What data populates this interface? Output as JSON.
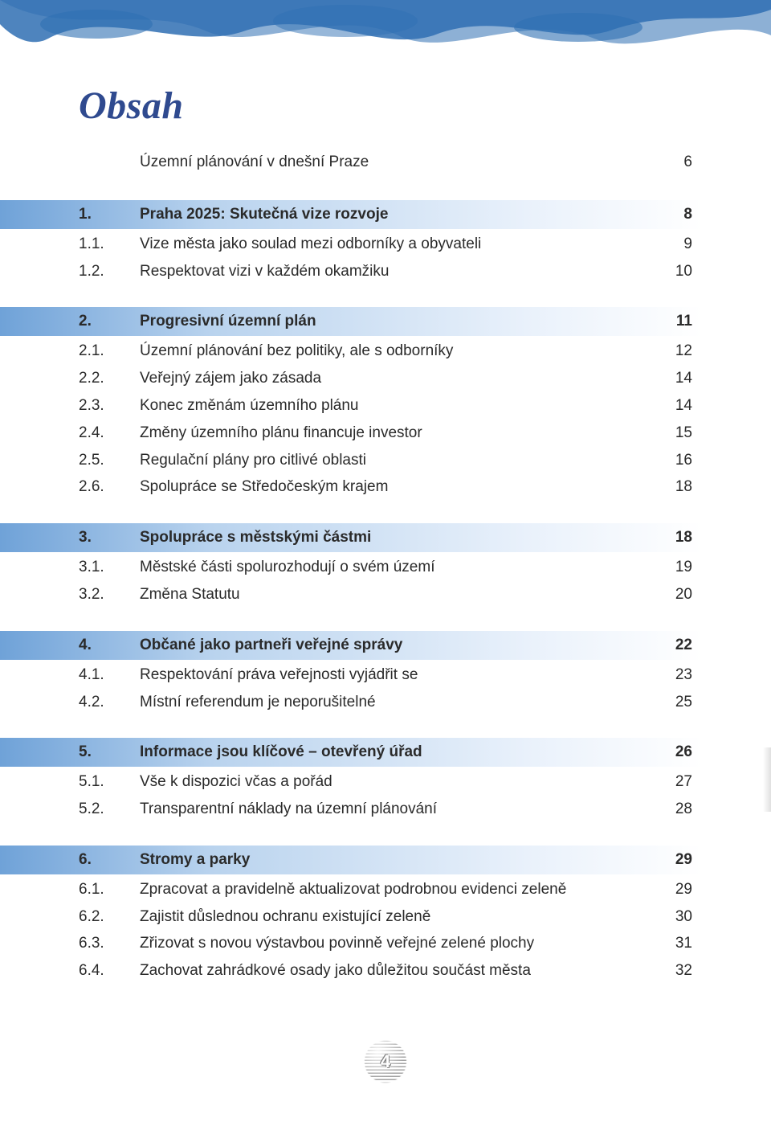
{
  "colors": {
    "title": "#2f4a8f",
    "text": "#2a2a2a",
    "brush": "#2f6fb3",
    "section_grad_from": "#6fa2d8",
    "section_grad_mid": "#b9d3ee",
    "section_grad_to": "#ffffff",
    "background": "#ffffff"
  },
  "typography": {
    "title_family": "Georgia serif italic",
    "title_size_pt": 36,
    "body_family": "Segoe UI / sans-serif",
    "body_size_pt": 14
  },
  "title": "Obsah",
  "intro": {
    "label": "Územní plánování v dnešní Praze",
    "page": "6"
  },
  "sections": [
    {
      "num": "1.",
      "label": "Praha 2025: Skutečná vize rozvoje",
      "page": "8",
      "items": [
        {
          "num": "1.1.",
          "label": "Vize města jako soulad mezi odborníky a obyvateli",
          "page": "9"
        },
        {
          "num": "1.2.",
          "label": "Respektovat vizi v každém okamžiku",
          "page": "10"
        }
      ]
    },
    {
      "num": "2.",
      "label": "Progresivní územní plán",
      "page": "11",
      "items": [
        {
          "num": "2.1.",
          "label": "Územní plánování bez politiky, ale s odborníky",
          "page": "12"
        },
        {
          "num": "2.2.",
          "label": "Veřejný zájem jako zásada",
          "page": "14"
        },
        {
          "num": "2.3.",
          "label": "Konec změnám územního plánu",
          "page": "14"
        },
        {
          "num": "2.4.",
          "label": "Změny územního plánu financuje investor",
          "page": "15"
        },
        {
          "num": "2.5.",
          "label": "Regulační plány pro citlivé oblasti",
          "page": "16"
        },
        {
          "num": "2.6.",
          "label": "Spolupráce se Středočeským krajem",
          "page": "18"
        }
      ]
    },
    {
      "num": "3.",
      "label": "Spolupráce s městskými částmi",
      "page": "18",
      "items": [
        {
          "num": "3.1.",
          "label": "Městské části spolurozhodují o svém území",
          "page": "19"
        },
        {
          "num": "3.2.",
          "label": "Změna Statutu",
          "page": "20"
        }
      ]
    },
    {
      "num": "4.",
      "label": "Občané jako partneři veřejné správy",
      "page": "22",
      "items": [
        {
          "num": "4.1.",
          "label": "Respektování práva veřejnosti vyjádřit se",
          "page": "23"
        },
        {
          "num": "4.2.",
          "label": "Místní referendum je neporušitelné",
          "page": "25"
        }
      ]
    },
    {
      "num": "5.",
      "label": "Informace jsou klíčové – otevřený úřad",
      "page": "26",
      "items": [
        {
          "num": "5.1.",
          "label": "Vše k dispozici včas a pořád",
          "page": "27"
        },
        {
          "num": "5.2.",
          "label": "Transparentní náklady na územní plánování",
          "page": "28"
        }
      ]
    },
    {
      "num": "6.",
      "label": "Stromy a parky",
      "page": "29",
      "items": [
        {
          "num": "6.1.",
          "label": "Zpracovat a pravidelně aktualizovat podrobnou evidenci zeleně",
          "page": "29"
        },
        {
          "num": "6.2.",
          "label": "Zajistit důslednou ochranu existující zeleně",
          "page": "30"
        },
        {
          "num": "6.3.",
          "label": "Zřizovat s novou výstavbou povinně veřejné zelené plochy",
          "page": "31"
        },
        {
          "num": "6.4.",
          "label": "Zachovat zahrádkové osady jako důležitou součást města",
          "page": "32"
        }
      ]
    }
  ],
  "footer": {
    "page_number": "4"
  }
}
